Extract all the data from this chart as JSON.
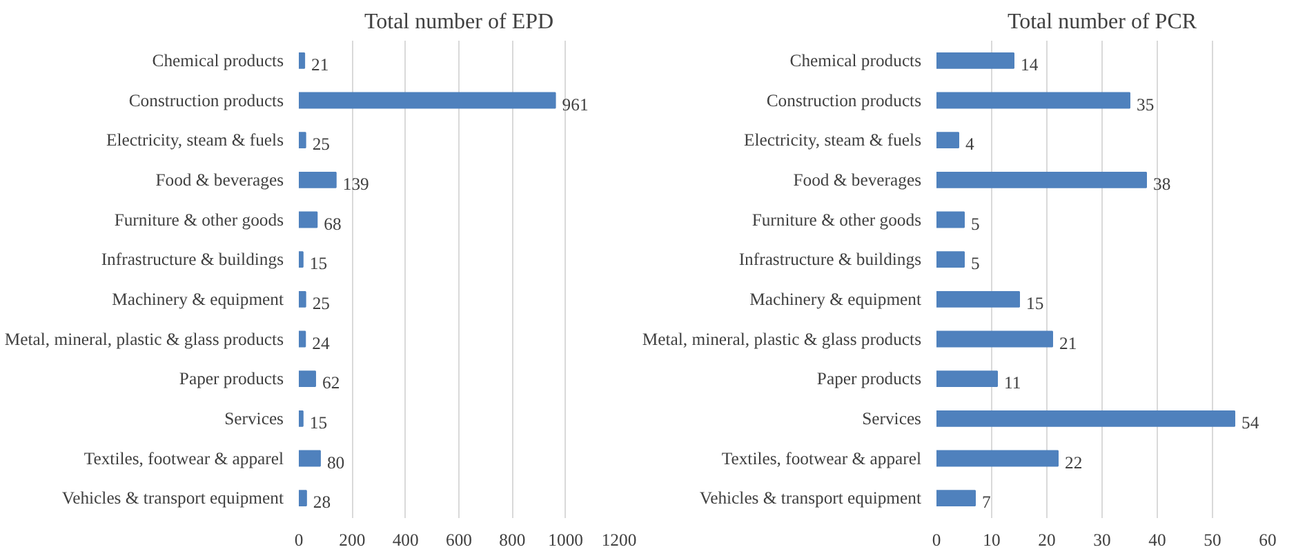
{
  "chart_data": [
    {
      "type": "bar",
      "orientation": "horizontal",
      "title": "Total number of EPD",
      "categories": [
        "Chemical products",
        "Construction products",
        "Electricity, steam & fuels",
        "Food & beverages",
        "Furniture & other goods",
        "Infrastructure & buildings",
        "Machinery & equipment",
        "Metal, mineral, plastic & glass products",
        "Paper products",
        "Services",
        "Textiles, footwear & apparel",
        "Vehicles & transport equipment"
      ],
      "values": [
        21,
        961,
        25,
        139,
        68,
        15,
        25,
        24,
        62,
        15,
        80,
        28
      ],
      "color": "#4f81bd",
      "xlim": [
        0,
        1200
      ],
      "xticks": [
        0,
        200,
        400,
        600,
        800,
        1000,
        1200
      ],
      "grid": "x",
      "data_labels": true
    },
    {
      "type": "bar",
      "orientation": "horizontal",
      "title": "Total number of PCR",
      "categories": [
        "Chemical products",
        "Construction products",
        "Electricity, steam & fuels",
        "Food & beverages",
        "Furniture & other goods",
        "Infrastructure & buildings",
        "Machinery & equipment",
        "Metal, mineral, plastic & glass products",
        "Paper products",
        "Services",
        "Textiles, footwear & apparel",
        "Vehicles & transport equipment"
      ],
      "values": [
        14,
        35,
        4,
        38,
        5,
        5,
        15,
        21,
        11,
        54,
        22,
        7
      ],
      "color": "#4f81bd",
      "xlim": [
        0,
        60
      ],
      "xticks": [
        0,
        10,
        20,
        30,
        40,
        50,
        60
      ],
      "grid": "x",
      "data_labels": true
    }
  ]
}
